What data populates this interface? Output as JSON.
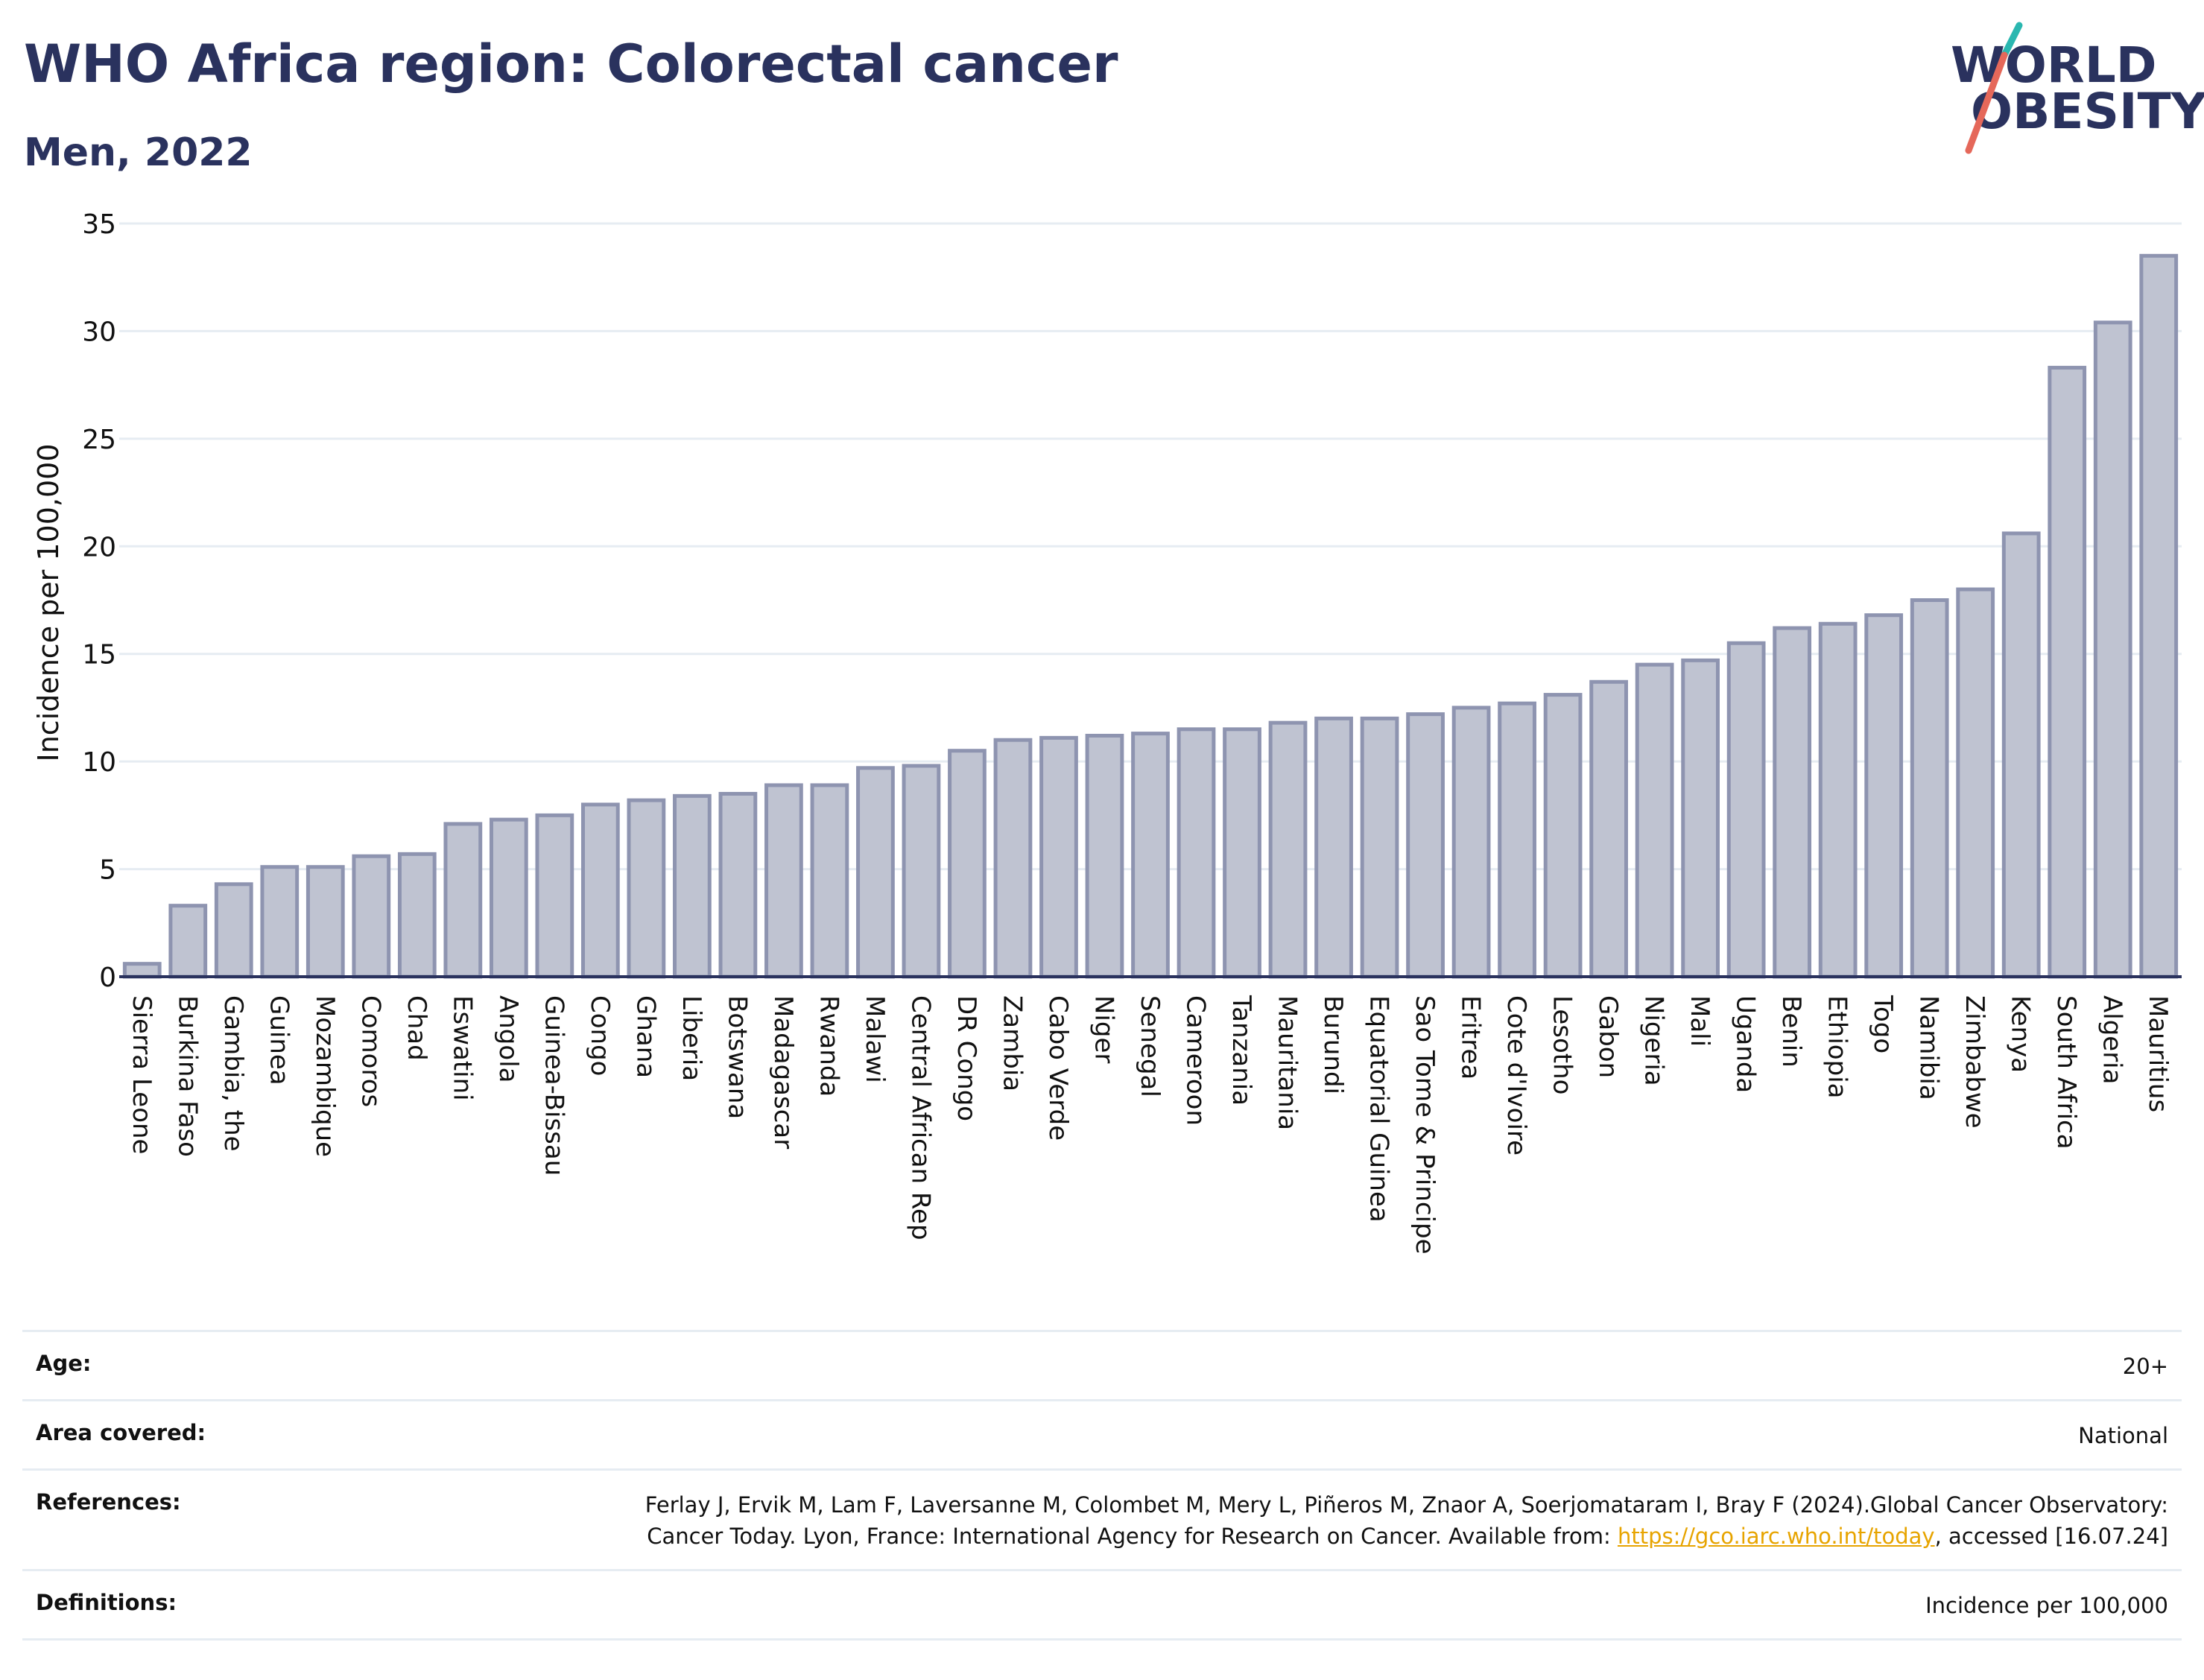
{
  "title": "WHO Africa region: Colorectal cancer",
  "subtitle": "Men, 2022",
  "logo": {
    "line1": "WORLD",
    "line2": "OBESITY",
    "slash_color_top": "#2ab7b0",
    "slash_color_bottom": "#e5685a"
  },
  "colors": {
    "title": "#2a325e",
    "bar_fill": "#bfc3d1",
    "bar_stroke": "#8e94b0",
    "grid": "#e6ecf2",
    "link": "#e7a400"
  },
  "chart_data": {
    "type": "bar",
    "ylabel": "Incidence per 100,000",
    "ylim": [
      0,
      35
    ],
    "yticks": [
      0,
      5,
      10,
      15,
      20,
      25,
      30,
      35
    ],
    "grid": true,
    "categories": [
      "Sierra Leone",
      "Burkina Faso",
      "Gambia, the",
      "Guinea",
      "Mozambique",
      "Comoros",
      "Chad",
      "Eswatini",
      "Angola",
      "Guinea-Bissau",
      "Congo",
      "Ghana",
      "Liberia",
      "Botswana",
      "Madagascar",
      "Rwanda",
      "Malawi",
      "Central African Rep",
      "DR Congo",
      "Zambia",
      "Cabo Verde",
      "Niger",
      "Senegal",
      "Cameroon",
      "Tanzania",
      "Mauritania",
      "Burundi",
      "Equatorial Guinea",
      "Sao Tome & Principe",
      "Eritrea",
      "Cote d'Ivoire",
      "Lesotho",
      "Gabon",
      "Nigeria",
      "Mali",
      "Uganda",
      "Benin",
      "Ethiopia",
      "Togo",
      "Namibia",
      "Zimbabwe",
      "Kenya",
      "South Africa",
      "Algeria",
      "Mauritius"
    ],
    "values": [
      0.6,
      3.3,
      4.3,
      5.1,
      5.1,
      5.6,
      5.7,
      7.1,
      7.3,
      7.5,
      8.0,
      8.2,
      8.4,
      8.5,
      8.9,
      8.9,
      9.7,
      9.8,
      10.5,
      11.0,
      11.1,
      11.2,
      11.3,
      11.5,
      11.5,
      11.8,
      12.0,
      12.0,
      12.2,
      12.5,
      12.7,
      13.1,
      13.7,
      14.5,
      14.7,
      15.5,
      16.2,
      16.4,
      16.8,
      17.5,
      18.0,
      20.6,
      28.3,
      30.4,
      33.5
    ]
  },
  "info": {
    "age_label": "Age:",
    "age_value": "20+",
    "area_label": "Area covered:",
    "area_value": "National",
    "references_label": "References:",
    "references_text": "Ferlay J, Ervik M, Lam F, Laversanne M, Colombet M, Mery L, Piñeros M, Znaor A, Soerjomataram I, Bray F (2024).Global Cancer Observatory: Cancer Today. Lyon, France: International Agency for Research on Cancer. Available from: ",
    "references_link": "https://gco.iarc.who.int/today",
    "references_tail": ", accessed [16.07.24]",
    "definitions_label": "Definitions:",
    "definitions_value": "Incidence per 100,000"
  }
}
